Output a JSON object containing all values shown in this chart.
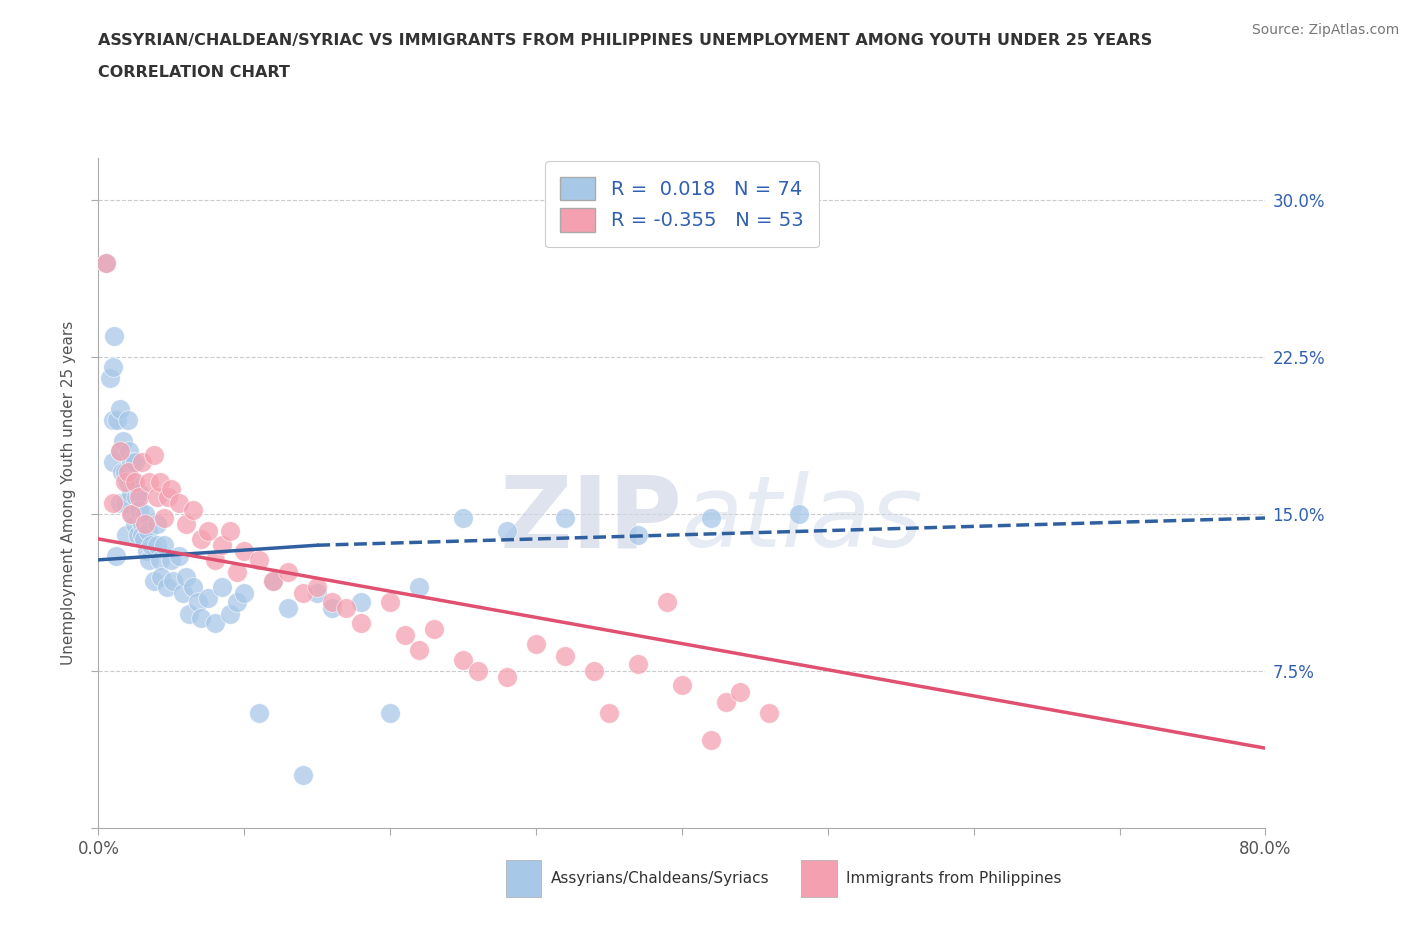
{
  "title_line1": "ASSYRIAN/CHALDEAN/SYRIAC VS IMMIGRANTS FROM PHILIPPINES UNEMPLOYMENT AMONG YOUTH UNDER 25 YEARS",
  "title_line2": "CORRELATION CHART",
  "source_text": "Source: ZipAtlas.com",
  "ylabel": "Unemployment Among Youth under 25 years",
  "xlim": [
    0.0,
    0.8
  ],
  "ylim": [
    0.0,
    0.32
  ],
  "yticks": [
    0.0,
    0.075,
    0.15,
    0.225,
    0.3
  ],
  "ytick_labels": [
    "",
    "7.5%",
    "15.0%",
    "22.5%",
    "30.0%"
  ],
  "xticks": [
    0.0,
    0.1,
    0.2,
    0.3,
    0.4,
    0.5,
    0.6,
    0.7,
    0.8
  ],
  "xtick_labels": [
    "0.0%",
    "",
    "",
    "",
    "",
    "",
    "",
    "",
    "80.0%"
  ],
  "blue_R": 0.018,
  "blue_N": 74,
  "pink_R": -0.355,
  "pink_N": 53,
  "blue_color": "#a8c8e8",
  "pink_color": "#f4a0b0",
  "blue_line_color": "#3060a0",
  "pink_line_color": "#e05070",
  "legend_label_blue": "Assyrians/Chaldeans/Syriacs",
  "legend_label_pink": "Immigrants from Philippines",
  "grid_color": "#cccccc",
  "background_color": "#ffffff",
  "blue_line_start_x": 0.0,
  "blue_line_start_y": 0.128,
  "blue_line_end_x": 0.15,
  "blue_line_solid_end_y": 0.135,
  "blue_line_dash_end_x": 0.8,
  "blue_line_dash_end_y": 0.148,
  "pink_line_start_x": 0.0,
  "pink_line_start_y": 0.138,
  "pink_line_end_x": 0.8,
  "pink_line_end_y": 0.038,
  "blue_scatter_x": [
    0.005,
    0.008,
    0.01,
    0.01,
    0.01,
    0.011,
    0.012,
    0.013,
    0.015,
    0.015,
    0.015,
    0.016,
    0.017,
    0.018,
    0.018,
    0.019,
    0.02,
    0.02,
    0.021,
    0.022,
    0.022,
    0.023,
    0.024,
    0.025,
    0.025,
    0.026,
    0.027,
    0.028,
    0.028,
    0.03,
    0.03,
    0.031,
    0.032,
    0.033,
    0.034,
    0.035,
    0.036,
    0.038,
    0.04,
    0.04,
    0.042,
    0.043,
    0.045,
    0.047,
    0.05,
    0.051,
    0.055,
    0.058,
    0.06,
    0.062,
    0.065,
    0.068,
    0.07,
    0.075,
    0.08,
    0.085,
    0.09,
    0.095,
    0.1,
    0.11,
    0.12,
    0.13,
    0.14,
    0.15,
    0.16,
    0.18,
    0.2,
    0.22,
    0.25,
    0.28,
    0.32,
    0.37,
    0.42,
    0.48
  ],
  "blue_scatter_y": [
    0.27,
    0.215,
    0.195,
    0.175,
    0.22,
    0.235,
    0.13,
    0.195,
    0.2,
    0.18,
    0.155,
    0.17,
    0.185,
    0.17,
    0.155,
    0.14,
    0.195,
    0.165,
    0.18,
    0.175,
    0.16,
    0.15,
    0.165,
    0.175,
    0.145,
    0.158,
    0.14,
    0.16,
    0.152,
    0.145,
    0.14,
    0.138,
    0.15,
    0.132,
    0.142,
    0.128,
    0.135,
    0.118,
    0.135,
    0.145,
    0.128,
    0.12,
    0.135,
    0.115,
    0.128,
    0.118,
    0.13,
    0.112,
    0.12,
    0.102,
    0.115,
    0.108,
    0.1,
    0.11,
    0.098,
    0.115,
    0.102,
    0.108,
    0.112,
    0.055,
    0.118,
    0.105,
    0.025,
    0.112,
    0.105,
    0.108,
    0.055,
    0.115,
    0.148,
    0.142,
    0.148,
    0.14,
    0.148,
    0.15
  ],
  "pink_scatter_x": [
    0.005,
    0.01,
    0.015,
    0.018,
    0.02,
    0.022,
    0.025,
    0.028,
    0.03,
    0.032,
    0.035,
    0.038,
    0.04,
    0.042,
    0.045,
    0.048,
    0.05,
    0.055,
    0.06,
    0.065,
    0.07,
    0.075,
    0.08,
    0.085,
    0.09,
    0.095,
    0.1,
    0.11,
    0.12,
    0.13,
    0.14,
    0.15,
    0.16,
    0.17,
    0.18,
    0.2,
    0.21,
    0.22,
    0.23,
    0.25,
    0.26,
    0.28,
    0.3,
    0.32,
    0.34,
    0.37,
    0.4,
    0.43,
    0.35,
    0.44,
    0.46,
    0.39,
    0.42
  ],
  "pink_scatter_y": [
    0.27,
    0.155,
    0.18,
    0.165,
    0.17,
    0.15,
    0.165,
    0.158,
    0.175,
    0.145,
    0.165,
    0.178,
    0.158,
    0.165,
    0.148,
    0.158,
    0.162,
    0.155,
    0.145,
    0.152,
    0.138,
    0.142,
    0.128,
    0.135,
    0.142,
    0.122,
    0.132,
    0.128,
    0.118,
    0.122,
    0.112,
    0.115,
    0.108,
    0.105,
    0.098,
    0.108,
    0.092,
    0.085,
    0.095,
    0.08,
    0.075,
    0.072,
    0.088,
    0.082,
    0.075,
    0.078,
    0.068,
    0.06,
    0.055,
    0.065,
    0.055,
    0.108,
    0.042
  ]
}
